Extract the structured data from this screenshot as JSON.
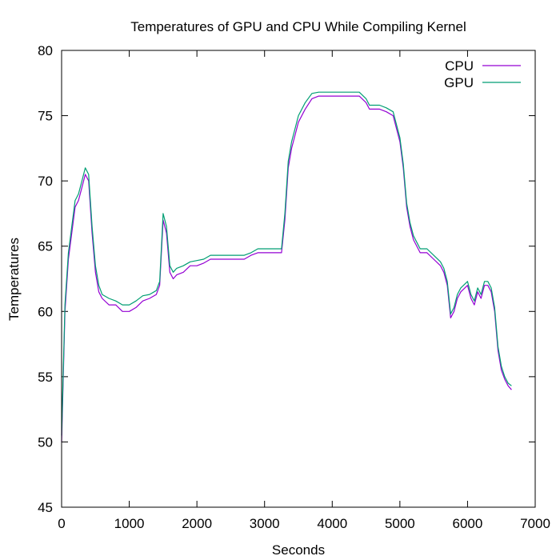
{
  "chart_data": {
    "type": "line",
    "title": "Temperatures of GPU and CPU While Compiling Kernel",
    "xlabel": "Seconds",
    "ylabel": "Temperatures",
    "xlim": [
      0,
      7000
    ],
    "ylim": [
      45,
      80
    ],
    "x_ticks": [
      0,
      1000,
      2000,
      3000,
      4000,
      5000,
      6000,
      7000
    ],
    "y_ticks": [
      45,
      50,
      55,
      60,
      65,
      70,
      75,
      80
    ],
    "grid": false,
    "legend_position": "top-right",
    "series": [
      {
        "name": "CPU",
        "color": "#9400d3",
        "x": [
          0,
          50,
          100,
          150,
          200,
          250,
          300,
          350,
          400,
          450,
          500,
          550,
          600,
          700,
          800,
          900,
          1000,
          1100,
          1200,
          1300,
          1400,
          1450,
          1500,
          1550,
          1600,
          1650,
          1700,
          1800,
          1900,
          2000,
          2100,
          2200,
          2300,
          2400,
          2500,
          2600,
          2700,
          2800,
          2900,
          3000,
          3100,
          3200,
          3250,
          3300,
          3350,
          3400,
          3450,
          3500,
          3600,
          3700,
          3800,
          3900,
          4000,
          4100,
          4200,
          4300,
          4400,
          4500,
          4550,
          4600,
          4700,
          4800,
          4900,
          5000,
          5050,
          5100,
          5150,
          5200,
          5300,
          5400,
          5500,
          5600,
          5650,
          5700,
          5750,
          5800,
          5850,
          5900,
          6000,
          6050,
          6100,
          6150,
          6200,
          6250,
          6300,
          6350,
          6400,
          6450,
          6500,
          6550,
          6600,
          6650
        ],
        "values": [
          50,
          60,
          64,
          66,
          68,
          68.5,
          69.5,
          70.5,
          70,
          66,
          63,
          61.5,
          61,
          60.5,
          60.5,
          60,
          60,
          60.3,
          60.8,
          61,
          61.3,
          62,
          67,
          66,
          63,
          62.5,
          62.8,
          63,
          63.5,
          63.5,
          63.7,
          64,
          64,
          64,
          64,
          64,
          64,
          64.3,
          64.5,
          64.5,
          64.5,
          64.5,
          64.5,
          67,
          71,
          72.5,
          73.5,
          74.5,
          75.5,
          76.3,
          76.5,
          76.5,
          76.5,
          76.5,
          76.5,
          76.5,
          76.5,
          76,
          75.5,
          75.5,
          75.5,
          75.3,
          75,
          73,
          71,
          68,
          66.5,
          65.5,
          64.5,
          64.5,
          64,
          63.5,
          63,
          62,
          59.5,
          60,
          61,
          61.5,
          62,
          61,
          60.5,
          61.5,
          61,
          62,
          62,
          61.5,
          60,
          57,
          55.5,
          54.8,
          54.3,
          54
        ]
      },
      {
        "name": "GPU",
        "color": "#009e73",
        "x": [
          0,
          50,
          100,
          150,
          200,
          250,
          300,
          350,
          400,
          450,
          500,
          550,
          600,
          700,
          800,
          900,
          1000,
          1100,
          1200,
          1300,
          1400,
          1450,
          1500,
          1550,
          1600,
          1650,
          1700,
          1800,
          1900,
          2000,
          2100,
          2200,
          2300,
          2400,
          2500,
          2600,
          2700,
          2800,
          2900,
          3000,
          3100,
          3200,
          3250,
          3300,
          3350,
          3400,
          3450,
          3500,
          3600,
          3700,
          3800,
          3900,
          4000,
          4100,
          4200,
          4300,
          4400,
          4500,
          4550,
          4600,
          4700,
          4800,
          4900,
          5000,
          5050,
          5100,
          5150,
          5200,
          5300,
          5400,
          5500,
          5600,
          5650,
          5700,
          5750,
          5800,
          5850,
          5900,
          6000,
          6050,
          6100,
          6150,
          6200,
          6250,
          6300,
          6350,
          6400,
          6450,
          6500,
          6550,
          6600,
          6650
        ],
        "values": [
          50.5,
          60.5,
          64.5,
          66.5,
          68.5,
          69,
          70,
          71,
          70.5,
          66.5,
          63.5,
          62,
          61.3,
          61,
          60.8,
          60.5,
          60.5,
          60.8,
          61.2,
          61.3,
          61.6,
          62.3,
          67.5,
          66.5,
          63.5,
          63,
          63.3,
          63.5,
          63.8,
          63.9,
          64,
          64.3,
          64.3,
          64.3,
          64.3,
          64.3,
          64.3,
          64.5,
          64.8,
          64.8,
          64.8,
          64.8,
          64.8,
          67.5,
          71.5,
          73,
          74,
          75,
          76,
          76.7,
          76.8,
          76.8,
          76.8,
          76.8,
          76.8,
          76.8,
          76.8,
          76.3,
          75.8,
          75.8,
          75.8,
          75.6,
          75.3,
          73.3,
          71.3,
          68.3,
          66.8,
          65.8,
          64.8,
          64.8,
          64.3,
          63.8,
          63.3,
          62.3,
          59.8,
          60.3,
          61.3,
          61.8,
          62.3,
          61.3,
          60.8,
          61.8,
          61.3,
          62.3,
          62.3,
          61.8,
          60.3,
          57.3,
          55.8,
          55,
          54.5,
          54.3
        ]
      }
    ]
  }
}
